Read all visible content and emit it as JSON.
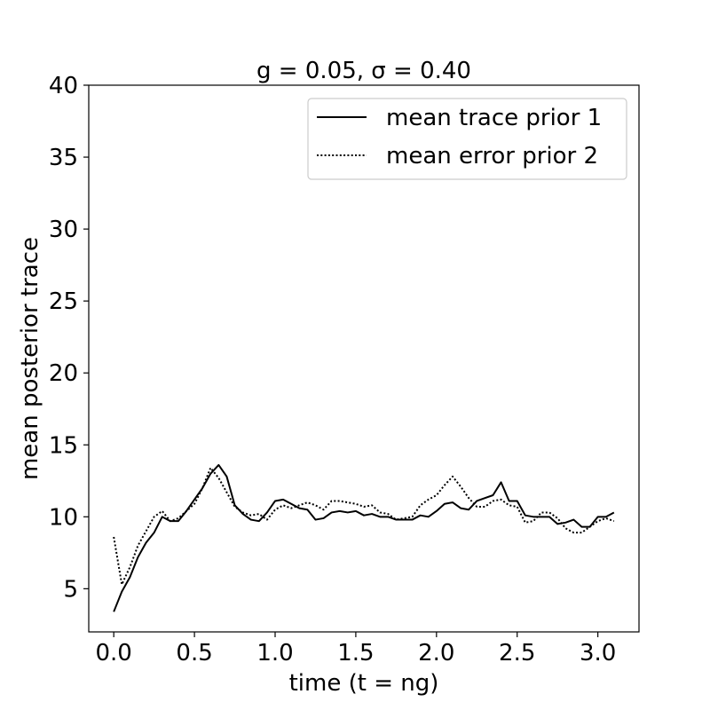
{
  "chart_data": {
    "type": "line",
    "title": "g = 0.05, σ = 0.40",
    "xlabel": "time (t = ng)",
    "ylabel": "mean posterior trace",
    "xlim": [
      -0.155,
      3.255
    ],
    "ylim": [
      2,
      40
    ],
    "x_ticks": [
      0.0,
      0.5,
      1.0,
      1.5,
      2.0,
      2.5,
      3.0
    ],
    "x_tick_labels": [
      "0.0",
      "0.5",
      "1.0",
      "1.5",
      "2.0",
      "2.5",
      "3.0"
    ],
    "y_ticks": [
      5,
      10,
      15,
      20,
      25,
      30,
      35,
      40
    ],
    "y_tick_labels": [
      "5",
      "10",
      "15",
      "20",
      "25",
      "30",
      "35",
      "40"
    ],
    "legend_position": "upper right",
    "grid": false,
    "series": [
      {
        "name": "mean trace prior 1",
        "style": "solid",
        "color": "#000000",
        "x": [
          0.0,
          0.05,
          0.1,
          0.15,
          0.2,
          0.25,
          0.3,
          0.35,
          0.4,
          0.45,
          0.5,
          0.55,
          0.6,
          0.65,
          0.7,
          0.75,
          0.8,
          0.85,
          0.9,
          0.95,
          1.0,
          1.05,
          1.1,
          1.15,
          1.2,
          1.25,
          1.3,
          1.35,
          1.4,
          1.45,
          1.5,
          1.55,
          1.6,
          1.65,
          1.7,
          1.75,
          1.8,
          1.85,
          1.9,
          1.95,
          2.0,
          2.05,
          2.1,
          2.15,
          2.2,
          2.25,
          2.3,
          2.35,
          2.4,
          2.45,
          2.5,
          2.55,
          2.6,
          2.65,
          2.7,
          2.75,
          2.8,
          2.85,
          2.9,
          2.95,
          3.0,
          3.05,
          3.1
        ],
        "y": [
          3.4,
          4.8,
          5.8,
          7.2,
          8.2,
          8.9,
          10.0,
          9.7,
          9.7,
          10.4,
          11.2,
          12.0,
          13.0,
          13.6,
          12.8,
          10.8,
          10.2,
          9.8,
          9.7,
          10.3,
          11.1,
          11.2,
          10.9,
          10.6,
          10.5,
          9.8,
          9.9,
          10.3,
          10.4,
          10.3,
          10.4,
          10.1,
          10.2,
          10.0,
          10.0,
          9.8,
          9.8,
          9.8,
          10.1,
          10.0,
          10.4,
          10.9,
          11.0,
          10.6,
          10.5,
          11.1,
          11.3,
          11.5,
          12.4,
          11.1,
          11.1,
          10.1,
          10.0,
          10.0,
          10.0,
          9.5,
          9.6,
          9.8,
          9.3,
          9.3,
          10.0,
          10.0,
          10.3
        ]
      },
      {
        "name": "mean error prior 2",
        "style": "dotted",
        "color": "#000000",
        "x": [
          0.0,
          0.05,
          0.1,
          0.15,
          0.2,
          0.25,
          0.3,
          0.35,
          0.4,
          0.45,
          0.5,
          0.55,
          0.6,
          0.65,
          0.7,
          0.75,
          0.8,
          0.85,
          0.9,
          0.95,
          1.0,
          1.05,
          1.1,
          1.15,
          1.2,
          1.25,
          1.3,
          1.35,
          1.4,
          1.45,
          1.5,
          1.55,
          1.6,
          1.65,
          1.7,
          1.75,
          1.8,
          1.85,
          1.9,
          1.95,
          2.0,
          2.05,
          2.1,
          2.15,
          2.2,
          2.25,
          2.3,
          2.35,
          2.4,
          2.45,
          2.5,
          2.55,
          2.6,
          2.65,
          2.7,
          2.75,
          2.8,
          2.85,
          2.9,
          2.95,
          3.0,
          3.05,
          3.1
        ],
        "y": [
          8.6,
          5.3,
          6.5,
          8.0,
          9.0,
          10.0,
          10.4,
          9.7,
          9.9,
          10.4,
          10.9,
          12.0,
          13.4,
          12.7,
          11.7,
          10.7,
          10.3,
          10.1,
          10.2,
          9.8,
          10.5,
          10.8,
          10.6,
          10.8,
          11.0,
          10.8,
          10.5,
          11.1,
          11.1,
          11.0,
          10.9,
          10.7,
          10.8,
          10.3,
          10.2,
          9.8,
          9.9,
          10.0,
          10.8,
          11.2,
          11.5,
          12.2,
          12.8,
          12.1,
          11.3,
          10.7,
          10.7,
          11.1,
          11.2,
          10.8,
          10.7,
          9.6,
          9.7,
          10.3,
          10.3,
          9.9,
          9.2,
          8.9,
          8.9,
          9.3,
          9.7,
          9.9,
          9.7
        ]
      }
    ]
  }
}
